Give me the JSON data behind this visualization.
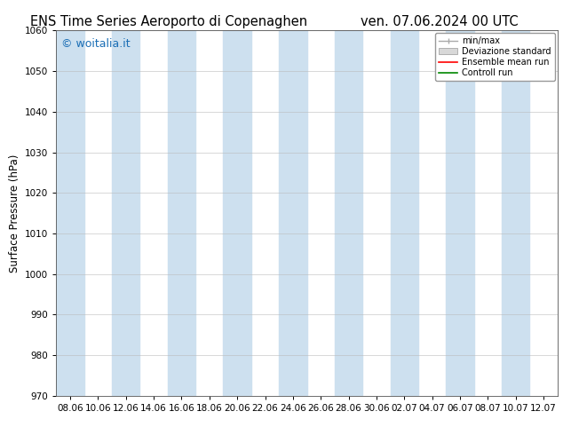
{
  "title_left": "ENS Time Series Aeroporto di Copenaghen",
  "title_right": "ven. 07.06.2024 00 UTC",
  "ylabel": "Surface Pressure (hPa)",
  "ylim": [
    970,
    1060
  ],
  "yticks": [
    970,
    980,
    990,
    1000,
    1010,
    1020,
    1030,
    1040,
    1050,
    1060
  ],
  "xtick_labels": [
    "08.06",
    "10.06",
    "12.06",
    "14.06",
    "16.06",
    "18.06",
    "20.06",
    "22.06",
    "24.06",
    "26.06",
    "28.06",
    "30.06",
    "02.07",
    "04.07",
    "06.07",
    "08.07",
    "10.07",
    "12.07"
  ],
  "band_color": "#cde0ef",
  "band_alpha": 1.0,
  "background_color": "#ffffff",
  "plot_bg_color": "#f0f0f0",
  "watermark": "© woitalia.it",
  "watermark_color": "#1a6eb5",
  "legend_labels": [
    "min/max",
    "Deviazione standard",
    "Ensemble mean run",
    "Controll run"
  ],
  "legend_colors_line": [
    "#aaaaaa",
    "#cccccc",
    "#ff0000",
    "#008800"
  ],
  "title_fontsize": 10.5,
  "ylabel_fontsize": 8.5,
  "tick_fontsize": 7.5,
  "watermark_fontsize": 9
}
